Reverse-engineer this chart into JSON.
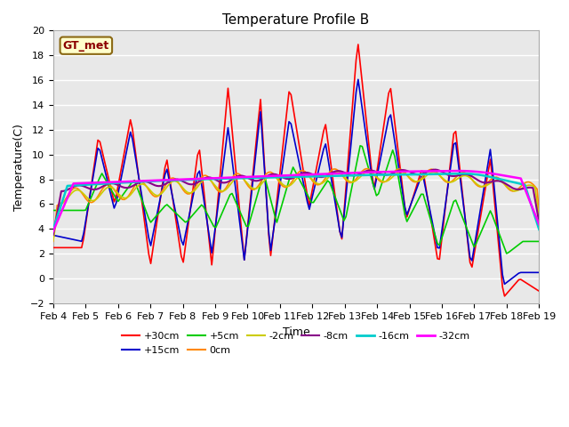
{
  "title": "Temperature Profile B",
  "xlabel": "Time",
  "ylabel": "Temperature(C)",
  "annotation": "GT_met",
  "ylim": [
    -2,
    20
  ],
  "xlim": [
    0,
    15
  ],
  "plot_bg": "#e8e8e8",
  "fig_bg": "#ffffff",
  "grid_color": "#ffffff",
  "series_colors": {
    "+30cm": "#ff0000",
    "+15cm": "#0000cc",
    "+5cm": "#00cc00",
    "0cm": "#ff8800",
    "-2cm": "#cccc00",
    "-8cm": "#880088",
    "-16cm": "#00cccc",
    "-32cm": "#ff00ff"
  },
  "xtick_labels": [
    "Feb 4",
    "Feb 5",
    "Feb 6",
    "Feb 7",
    "Feb 8",
    "Feb 9",
    "Feb 10",
    "Feb 11",
    "Feb 12",
    "Feb 13",
    "Feb 14",
    "Feb 15",
    "Feb 16",
    "Feb 17",
    "Feb 18",
    "Feb 19"
  ],
  "ytick_vals": [
    -2,
    0,
    2,
    4,
    6,
    8,
    10,
    12,
    14,
    16,
    18,
    20
  ],
  "tick_fontsize": 8,
  "title_fontsize": 11,
  "label_fontsize": 9,
  "legend_fontsize": 8
}
